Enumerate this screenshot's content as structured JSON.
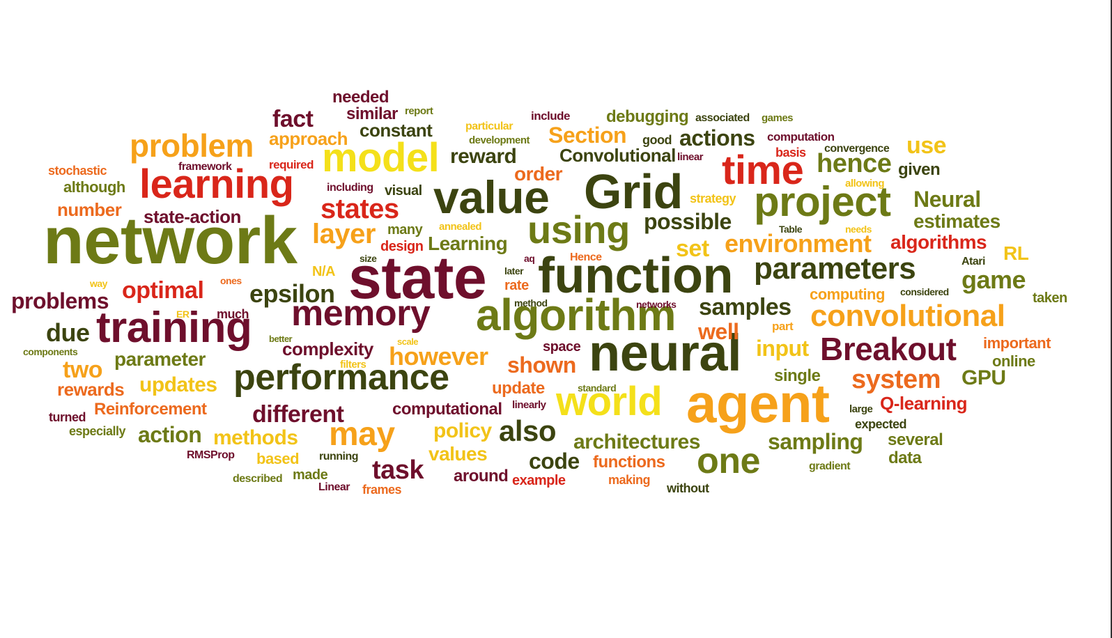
{
  "palette": {
    "darkred": "#6e0f2c",
    "crimson": "#8b1a3b",
    "red": "#d9261a",
    "orange": "#ec6a1e",
    "amber": "#f6a11a",
    "gold": "#f2c318",
    "yellow": "#f4e01a",
    "olive": "#6d7a16",
    "darkolive": "#3c4410",
    "green": "#4e6b16",
    "khaki": "#9a8a18"
  },
  "words": [
    {
      "text": "network",
      "color": "olive"
    },
    {
      "text": "state",
      "color": "darkred"
    },
    {
      "text": "function",
      "color": "darkolive"
    },
    {
      "text": "neural",
      "color": "darkolive"
    },
    {
      "text": "agent",
      "color": "amber"
    },
    {
      "text": "algorithm",
      "color": "olive"
    },
    {
      "text": "Grid",
      "color": "darkolive"
    },
    {
      "text": "value",
      "color": "darkolive"
    },
    {
      "text": "training",
      "color": "darkred"
    },
    {
      "text": "learning",
      "color": "red"
    },
    {
      "text": "model",
      "color": "yellow"
    },
    {
      "text": "time",
      "color": "red"
    },
    {
      "text": "project",
      "color": "olive"
    },
    {
      "text": "performance",
      "color": "darkolive"
    },
    {
      "text": "world",
      "color": "yellow"
    },
    {
      "text": "memory",
      "color": "darkred"
    },
    {
      "text": "using",
      "color": "olive"
    },
    {
      "text": "one",
      "color": "olive"
    },
    {
      "text": "Breakout",
      "color": "darkred"
    },
    {
      "text": "parameters",
      "color": "darkolive"
    },
    {
      "text": "problem",
      "color": "amber"
    },
    {
      "text": "convolutional",
      "color": "amber"
    },
    {
      "text": "may",
      "color": "amber"
    },
    {
      "text": "states",
      "color": "red"
    },
    {
      "text": "hence",
      "color": "olive"
    },
    {
      "text": "also",
      "color": "darkolive"
    },
    {
      "text": "environment",
      "color": "amber"
    },
    {
      "text": "layer",
      "color": "amber"
    },
    {
      "text": "system",
      "color": "orange"
    },
    {
      "text": "samples",
      "color": "darkolive"
    },
    {
      "text": "epsilon",
      "color": "darkolive"
    },
    {
      "text": "optimal",
      "color": "red"
    },
    {
      "text": "however",
      "color": "amber"
    },
    {
      "text": "actions",
      "color": "darkolive"
    },
    {
      "text": "game",
      "color": "olive"
    },
    {
      "text": "possible",
      "color": "darkolive"
    },
    {
      "text": "task",
      "color": "darkred"
    },
    {
      "text": "due",
      "color": "darkolive"
    },
    {
      "text": "different",
      "color": "darkred"
    },
    {
      "text": "fact",
      "color": "darkred"
    },
    {
      "text": "Section",
      "color": "amber"
    },
    {
      "text": "problems",
      "color": "darkred"
    },
    {
      "text": "shown",
      "color": "orange"
    },
    {
      "text": "two",
      "color": "amber"
    },
    {
      "text": "sampling",
      "color": "olive"
    },
    {
      "text": "input",
      "color": "gold"
    },
    {
      "text": "well",
      "color": "orange"
    },
    {
      "text": "code",
      "color": "darkolive"
    },
    {
      "text": "policy",
      "color": "gold"
    },
    {
      "text": "action",
      "color": "olive"
    },
    {
      "text": "methods",
      "color": "gold"
    },
    {
      "text": "architectures",
      "color": "olive"
    },
    {
      "text": "updates",
      "color": "gold"
    },
    {
      "text": "reward",
      "color": "darkolive"
    },
    {
      "text": "Neural",
      "color": "olive"
    },
    {
      "text": "estimates",
      "color": "olive"
    },
    {
      "text": "complexity",
      "color": "darkred"
    },
    {
      "text": "algorithms",
      "color": "red"
    },
    {
      "text": "parameter",
      "color": "olive"
    },
    {
      "text": "values",
      "color": "gold"
    },
    {
      "text": "set",
      "color": "gold"
    },
    {
      "text": "use",
      "color": "gold"
    },
    {
      "text": "GPU",
      "color": "olive"
    },
    {
      "text": "Q-learning",
      "color": "red"
    },
    {
      "text": "Convolutional",
      "color": "darkolive"
    },
    {
      "text": "Learning",
      "color": "olive"
    },
    {
      "text": "state-action",
      "color": "darkred"
    },
    {
      "text": "Reinforcement",
      "color": "orange"
    },
    {
      "text": "RL",
      "color": "gold"
    },
    {
      "text": "constant",
      "color": "darkolive"
    },
    {
      "text": "order",
      "color": "orange"
    },
    {
      "text": "approach",
      "color": "amber"
    },
    {
      "text": "functions",
      "color": "orange"
    },
    {
      "text": "number",
      "color": "orange"
    },
    {
      "text": "computational",
      "color": "darkred"
    },
    {
      "text": "debugging",
      "color": "olive"
    },
    {
      "text": "similar",
      "color": "darkred"
    },
    {
      "text": "rewards",
      "color": "orange"
    },
    {
      "text": "several",
      "color": "olive"
    },
    {
      "text": "around",
      "color": "darkred"
    },
    {
      "text": "needed",
      "color": "darkred"
    },
    {
      "text": "data",
      "color": "olive"
    },
    {
      "text": "update",
      "color": "orange"
    },
    {
      "text": "single",
      "color": "olive"
    },
    {
      "text": "important",
      "color": "orange"
    },
    {
      "text": "given",
      "color": "darkolive"
    },
    {
      "text": "online",
      "color": "olive"
    },
    {
      "text": "although",
      "color": "olive"
    },
    {
      "text": "computing",
      "color": "amber"
    },
    {
      "text": "space",
      "color": "darkred"
    },
    {
      "text": "design",
      "color": "red"
    },
    {
      "text": "many",
      "color": "olive"
    },
    {
      "text": "stochastic",
      "color": "orange"
    },
    {
      "text": "taken",
      "color": "olive"
    },
    {
      "text": "visual",
      "color": "darkolive"
    },
    {
      "text": "based",
      "color": "gold"
    },
    {
      "text": "rate",
      "color": "orange"
    },
    {
      "text": "made",
      "color": "olive"
    },
    {
      "text": "example",
      "color": "red"
    },
    {
      "text": "turned",
      "color": "darkred"
    },
    {
      "text": "frames",
      "color": "orange"
    },
    {
      "text": "expected",
      "color": "darkolive"
    },
    {
      "text": "especially",
      "color": "olive"
    },
    {
      "text": "making",
      "color": "orange"
    },
    {
      "text": "without",
      "color": "darkolive"
    },
    {
      "text": "running",
      "color": "darkolive"
    },
    {
      "text": "much",
      "color": "darkred"
    },
    {
      "text": "N/A",
      "color": "gold"
    },
    {
      "text": "good",
      "color": "darkolive"
    },
    {
      "text": "required",
      "color": "red"
    },
    {
      "text": "including",
      "color": "darkred"
    },
    {
      "text": "part",
      "color": "amber"
    },
    {
      "text": "basis",
      "color": "red"
    },
    {
      "text": "computation",
      "color": "darkred"
    },
    {
      "text": "convergence",
      "color": "darkolive"
    },
    {
      "text": "framework",
      "color": "darkred"
    },
    {
      "text": "Hence",
      "color": "orange"
    },
    {
      "text": "Atari",
      "color": "darkolive"
    },
    {
      "text": "filters",
      "color": "gold"
    },
    {
      "text": "report",
      "color": "olive"
    },
    {
      "text": "particular",
      "color": "gold"
    },
    {
      "text": "development",
      "color": "olive"
    },
    {
      "text": "include",
      "color": "darkred"
    },
    {
      "text": "associated",
      "color": "darkolive"
    },
    {
      "text": "games",
      "color": "olive"
    },
    {
      "text": "strategy",
      "color": "gold"
    },
    {
      "text": "allowing",
      "color": "gold"
    },
    {
      "text": "annealed",
      "color": "gold"
    },
    {
      "text": "linear",
      "color": "darkred"
    },
    {
      "text": "needs",
      "color": "gold"
    },
    {
      "text": "Table",
      "color": "darkolive"
    },
    {
      "text": "method",
      "color": "darkolive"
    },
    {
      "text": "networks",
      "color": "darkred"
    },
    {
      "text": "considered",
      "color": "darkolive"
    },
    {
      "text": "later",
      "color": "darkolive"
    },
    {
      "text": "aq",
      "color": "darkred"
    },
    {
      "text": "size",
      "color": "darkolive"
    },
    {
      "text": "way",
      "color": "gold"
    },
    {
      "text": "ones",
      "color": "orange"
    },
    {
      "text": "ER",
      "color": "gold"
    },
    {
      "text": "better",
      "color": "olive"
    },
    {
      "text": "scale",
      "color": "gold"
    },
    {
      "text": "components",
      "color": "olive"
    },
    {
      "text": "standard",
      "color": "olive"
    },
    {
      "text": "linearly",
      "color": "darkred"
    },
    {
      "text": "large",
      "color": "darkolive"
    },
    {
      "text": "gradient",
      "color": "olive"
    },
    {
      "text": "RMSProp",
      "color": "darkred"
    },
    {
      "text": "described",
      "color": "olive"
    },
    {
      "text": "Linear",
      "color": "darkred"
    }
  ]
}
